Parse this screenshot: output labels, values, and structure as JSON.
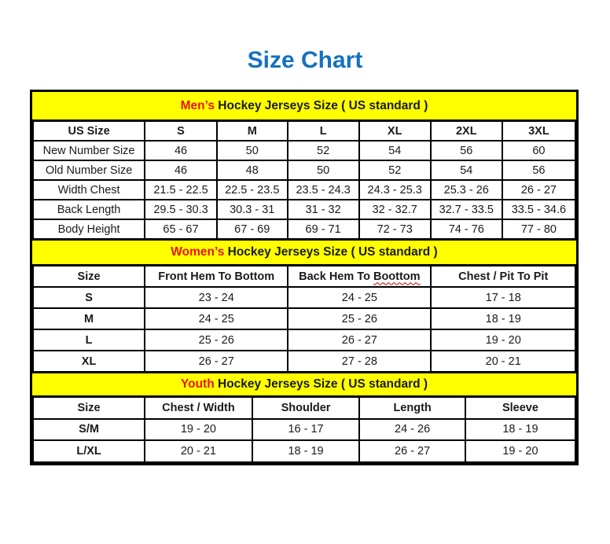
{
  "page": {
    "title": "Size Chart"
  },
  "colors": {
    "title_blue": "#1571BD",
    "banner_yellow": "#FFFF00",
    "highlight_red": "#E8130D",
    "text_black": "#1A1A1A",
    "border_black": "#000000",
    "squiggle_red": "#C00000"
  },
  "chart_data": {
    "type": "table",
    "title": "Size Chart",
    "tables": 3
  },
  "sections": [
    {
      "id": "mens",
      "banner": {
        "highlight": "Men’s",
        "rest": " Hockey Jerseys Size ( US standard )"
      },
      "header": [
        "US Size",
        "S",
        "M",
        "L",
        "XL",
        "2XL",
        "3XL"
      ],
      "rows": [
        [
          "New Number Size",
          "46",
          "50",
          "52",
          "54",
          "56",
          "60"
        ],
        [
          "Old Number Size",
          "46",
          "48",
          "50",
          "52",
          "54",
          "56"
        ],
        [
          "Width Chest",
          "21.5 - 22.5",
          "22.5 - 23.5",
          "23.5 - 24.3",
          "24.3 - 25.3",
          "25.3 - 26",
          "26 - 27"
        ],
        [
          "Back Length",
          "29.5 - 30.3",
          "30.3 - 31",
          "31 - 32",
          "32 - 32.7",
          "32.7 - 33.5",
          "33.5 - 34.6"
        ],
        [
          "Body Height",
          "65 - 67",
          "67 - 69",
          "69 - 71",
          "72 - 73",
          "74 - 76",
          "77 - 80"
        ]
      ]
    },
    {
      "id": "womens",
      "banner": {
        "highlight": "Women’s",
        "rest": " Hockey Jerseys Size ( US standard )"
      },
      "header": [
        "Size",
        "Front Hem To Bottom",
        "Back Hem To Boottom",
        "Chest / Pit To Pit"
      ],
      "spellcheck_underline_word": "Boottom",
      "rows": [
        [
          "S",
          "23 - 24",
          "24 - 25",
          "17 - 18"
        ],
        [
          "M",
          "24 - 25",
          "25 - 26",
          "18 - 19"
        ],
        [
          "L",
          "25 - 26",
          "26 - 27",
          "19 - 20"
        ],
        [
          "XL",
          "26 - 27",
          "27 - 28",
          "20 - 21"
        ]
      ]
    },
    {
      "id": "youth",
      "banner": {
        "highlight": "Youth",
        "rest": " Hockey Jerseys Size ( US standard )"
      },
      "header": [
        "Size",
        "Chest / Width",
        "Shoulder",
        "Length",
        "Sleeve"
      ],
      "rows": [
        [
          "S/M",
          "19 - 20",
          "16 - 17",
          "24 - 26",
          "18 - 19"
        ],
        [
          "L/XL",
          "20 - 21",
          "18 - 19",
          "26 - 27",
          "19 - 20"
        ]
      ]
    }
  ]
}
